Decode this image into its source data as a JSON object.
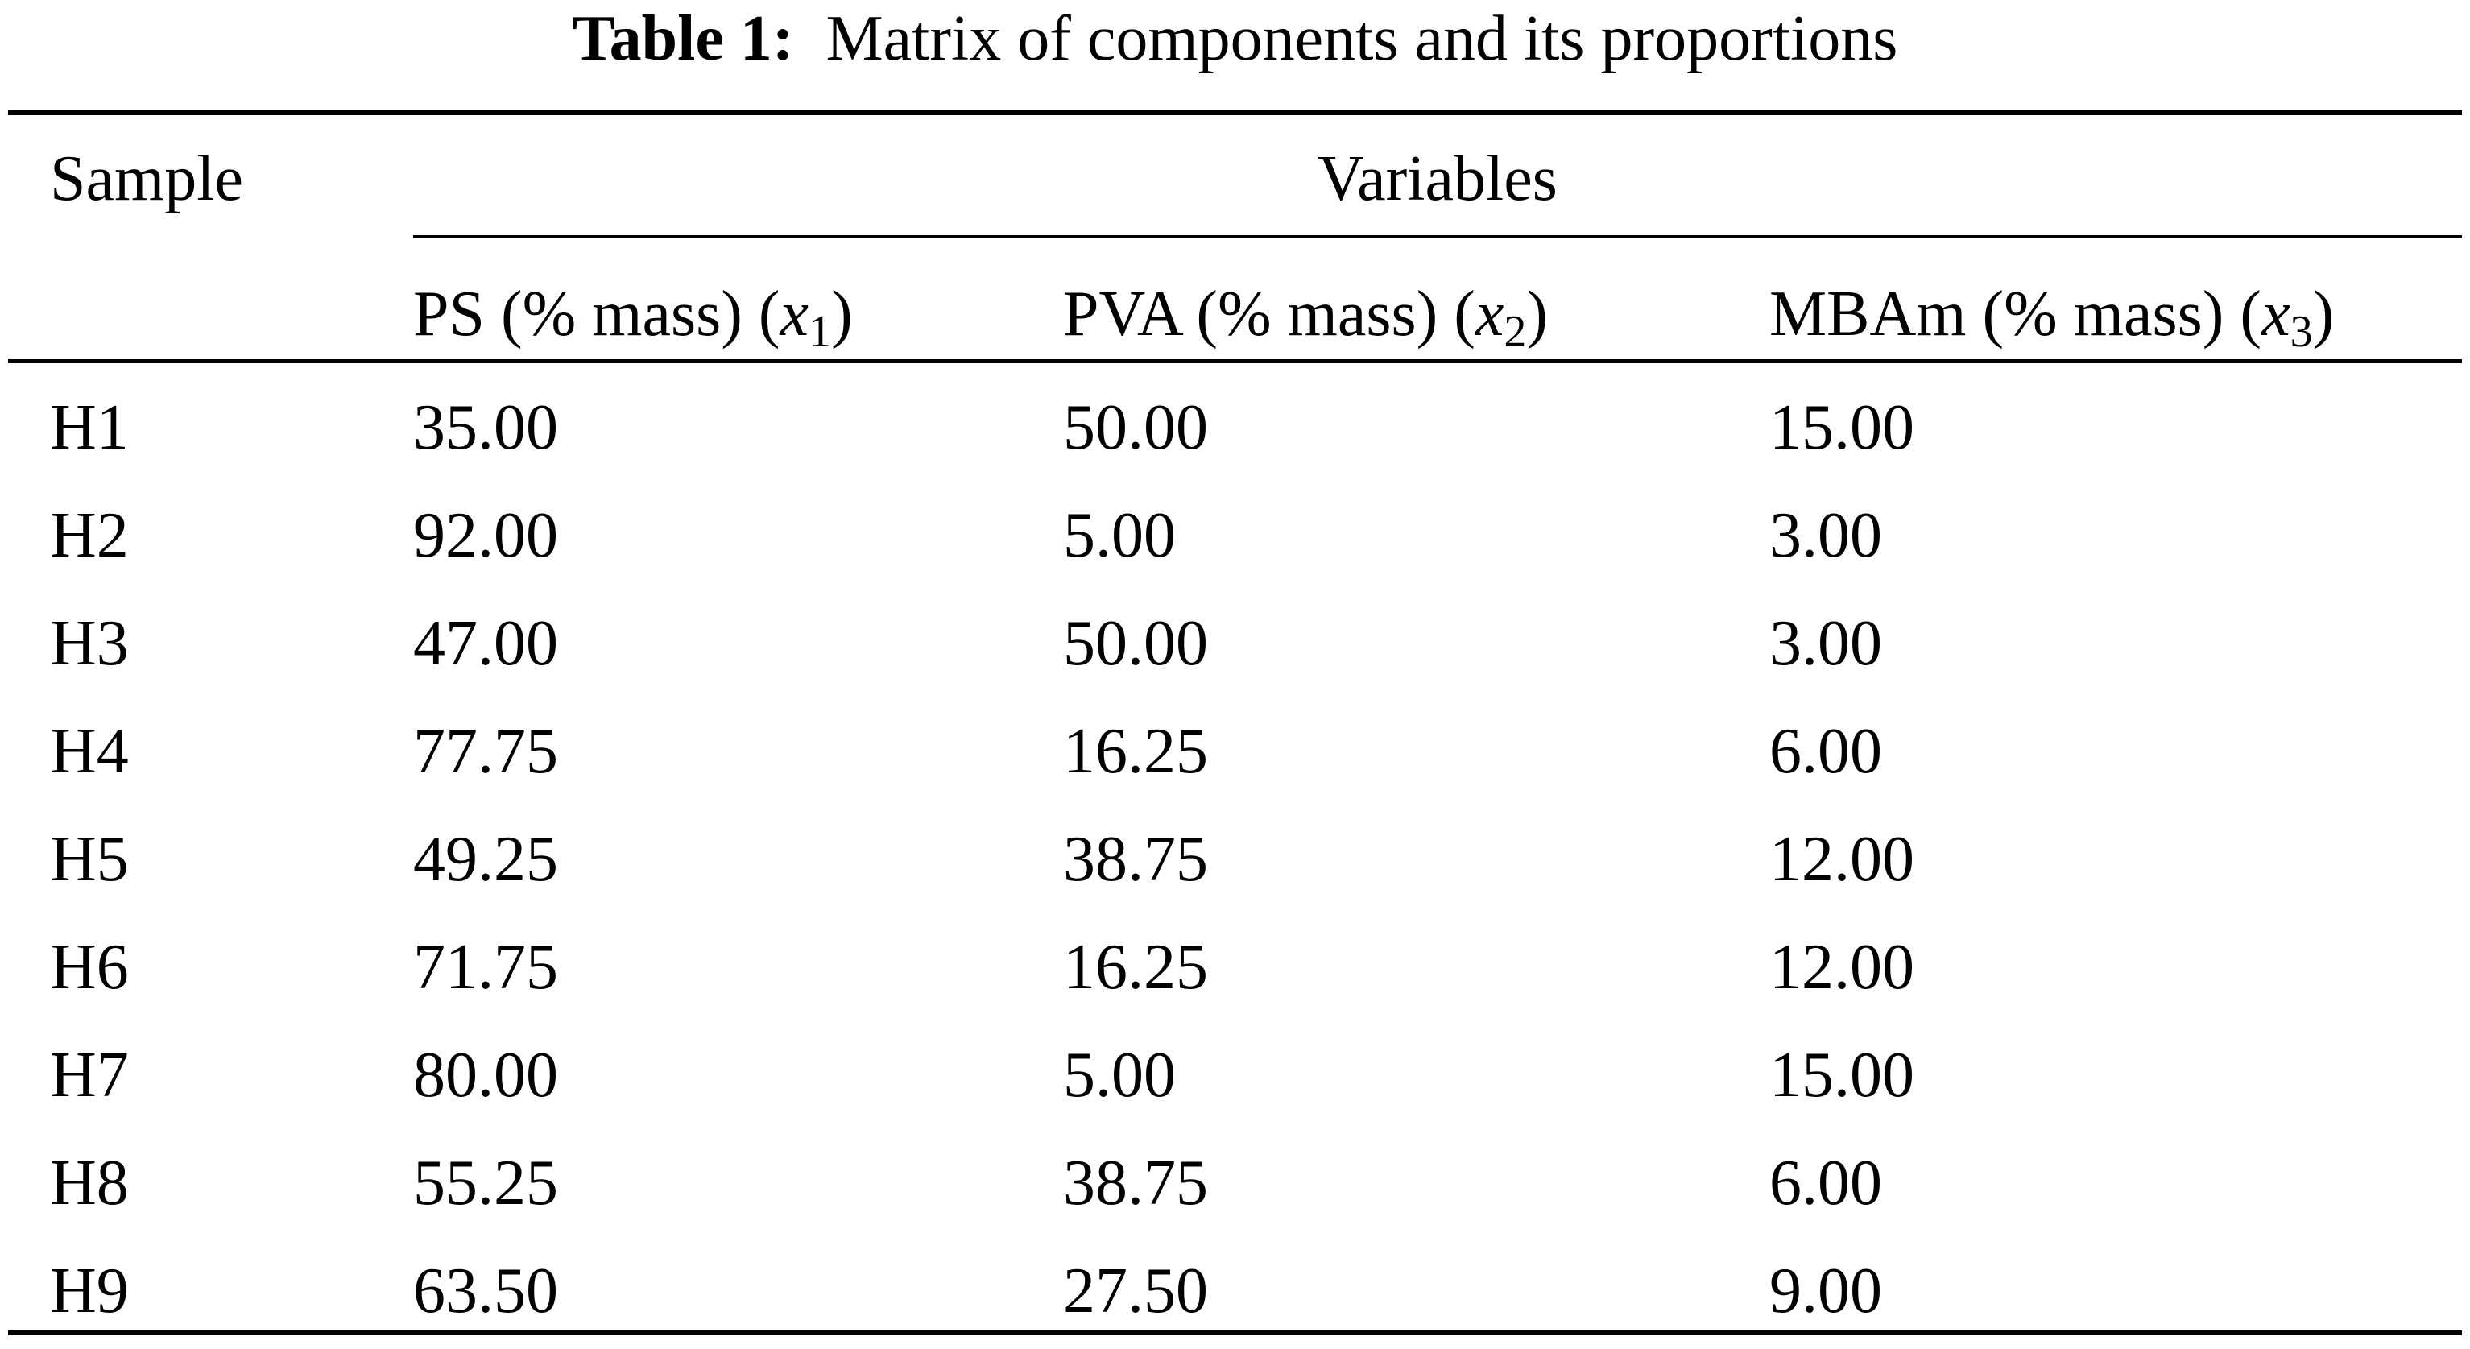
{
  "caption": {
    "label": "Table 1:",
    "text": "Matrix of components and its proportions"
  },
  "header": {
    "sample": "Sample",
    "variables": "Variables",
    "columns": [
      {
        "name": "PS (% mass) (",
        "var": "x",
        "sub": "1",
        "close": ")"
      },
      {
        "name": "PVA (% mass) (",
        "var": "x",
        "sub": "2",
        "close": ")"
      },
      {
        "name": "MBAm (% mass) (",
        "var": "x",
        "sub": "3",
        "close": ")"
      }
    ]
  },
  "rows": [
    {
      "sample": "H1",
      "ps": "35.00",
      "pva": "50.00",
      "mbam": "15.00"
    },
    {
      "sample": "H2",
      "ps": "92.00",
      "pva": "5.00",
      "mbam": "3.00"
    },
    {
      "sample": "H3",
      "ps": "47.00",
      "pva": "50.00",
      "mbam": "3.00"
    },
    {
      "sample": "H4",
      "ps": "77.75",
      "pva": "16.25",
      "mbam": "6.00"
    },
    {
      "sample": "H5",
      "ps": "49.25",
      "pva": "38.75",
      "mbam": "12.00"
    },
    {
      "sample": "H6",
      "ps": "71.75",
      "pva": "16.25",
      "mbam": "12.00"
    },
    {
      "sample": "H7",
      "ps": "80.00",
      "pva": "5.00",
      "mbam": "15.00"
    },
    {
      "sample": "H8",
      "ps": "55.25",
      "pva": "38.75",
      "mbam": "6.00"
    },
    {
      "sample": "H9",
      "ps": "63.50",
      "pva": "27.50",
      "mbam": "9.00"
    }
  ]
}
